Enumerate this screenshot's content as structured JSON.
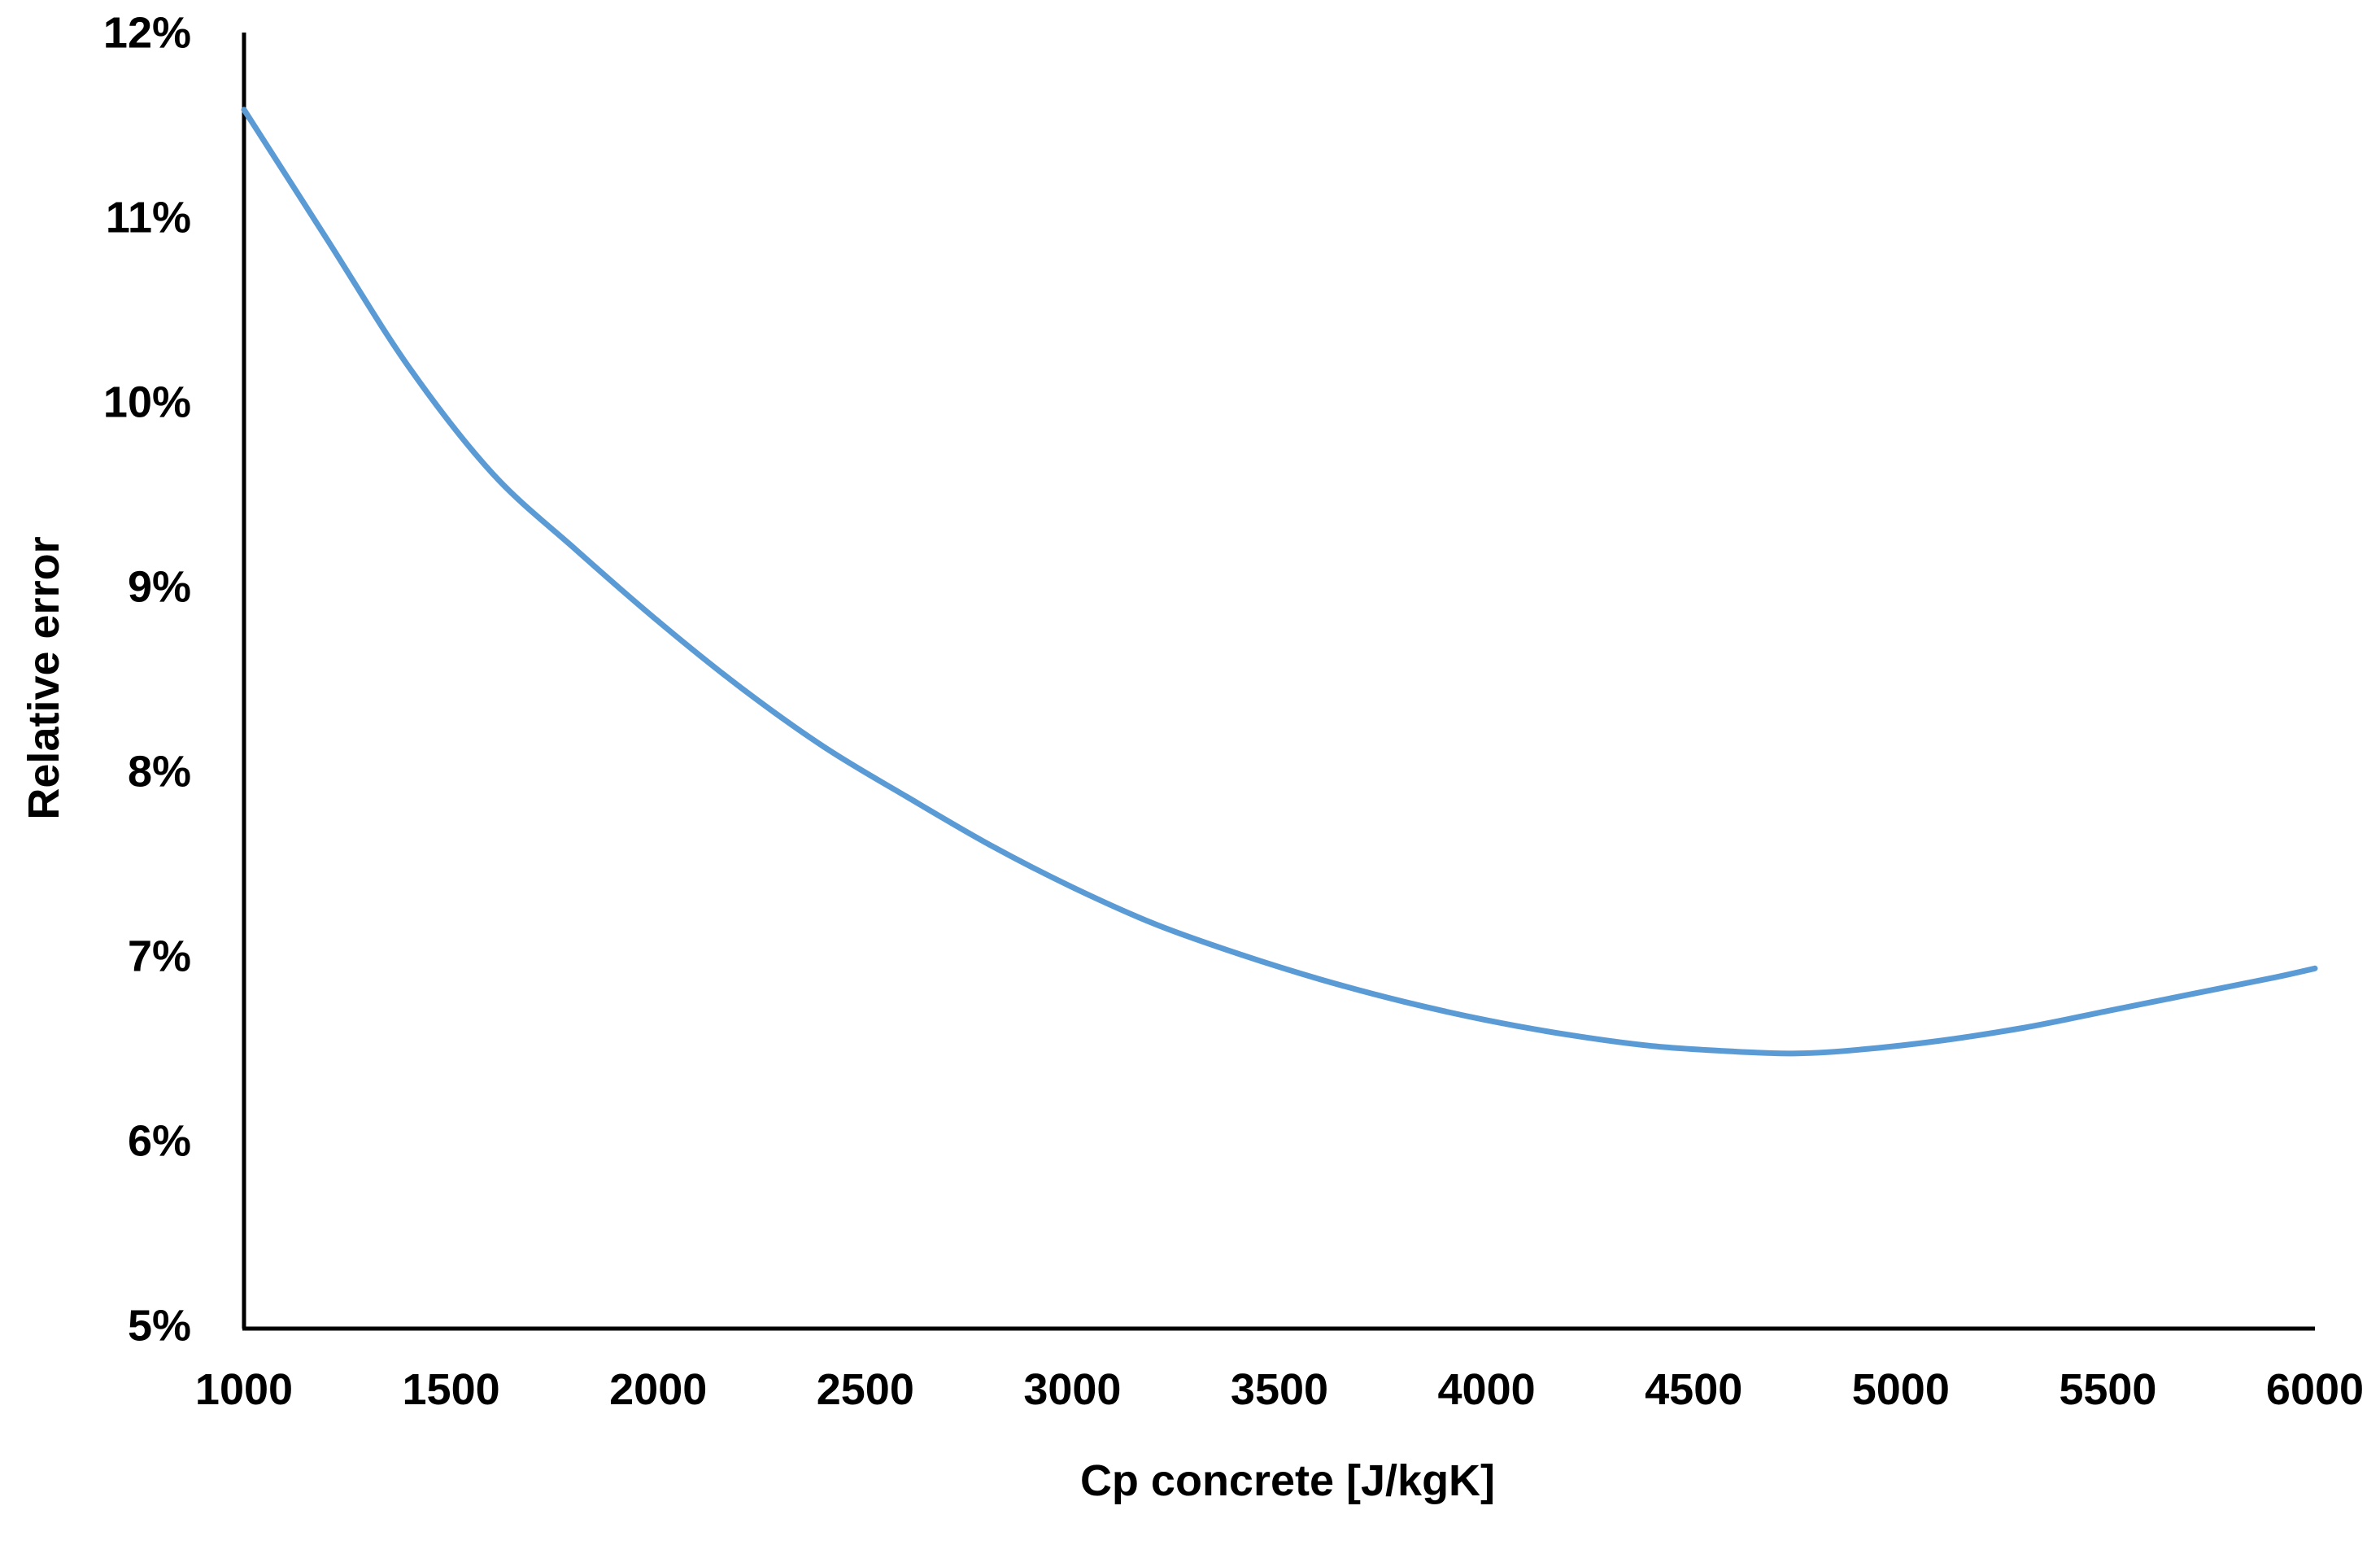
{
  "chart_data": {
    "type": "line",
    "title": "",
    "xlabel": "Cp concrete [J/kgK]",
    "ylabel": "Relative error",
    "xlim": [
      1000,
      6000
    ],
    "ylim": [
      0.05,
      0.12
    ],
    "x_ticks": [
      1000,
      1500,
      2000,
      2500,
      3000,
      3500,
      4000,
      4500,
      5000,
      5500,
      6000
    ],
    "x_tick_labels": [
      "1000",
      "1500",
      "2000",
      "2500",
      "3000",
      "3500",
      "4000",
      "4500",
      "5000",
      "5500",
      "6000"
    ],
    "y_ticks": [
      0.05,
      0.06,
      0.07,
      0.08,
      0.09,
      0.1,
      0.11,
      0.12
    ],
    "y_tick_labels": [
      "5%",
      "6%",
      "7%",
      "8%",
      "9%",
      "10%",
      "11%",
      "12%"
    ],
    "grid": false,
    "legend": "none",
    "series": [
      {
        "color": "#5b9bd5",
        "x": [
          1000,
          1200,
          1400,
          1600,
          1800,
          2000,
          2200,
          2400,
          2600,
          2800,
          3000,
          3200,
          3400,
          3600,
          3800,
          4000,
          4200,
          4400,
          4600,
          4750,
          4900,
          5100,
          5300,
          5500,
          5700,
          5900,
          6000
        ],
        "y": [
          0.116,
          0.109,
          0.102,
          0.0963,
          0.0922,
          0.0883,
          0.0847,
          0.0815,
          0.0788,
          0.0762,
          0.0739,
          0.0719,
          0.0703,
          0.0689,
          0.0677,
          0.0667,
          0.0659,
          0.0653,
          0.065,
          0.0649,
          0.0651,
          0.0656,
          0.0663,
          0.0672,
          0.0681,
          0.069,
          0.0695
        ]
      }
    ]
  }
}
